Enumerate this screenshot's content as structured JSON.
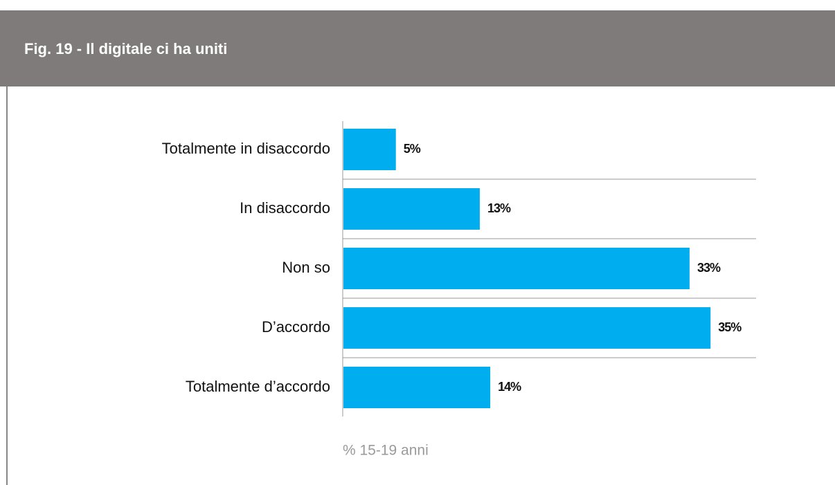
{
  "chart_data": {
    "type": "barh",
    "title": "Fig. 19 - Il digitale ci ha uniti",
    "categories": [
      "Totalmente in disaccordo",
      "In disaccordo",
      "Non so",
      "D’accordo",
      "Totalmente d’accordo"
    ],
    "values": [
      5,
      13,
      33,
      35,
      14
    ],
    "value_labels": [
      "5%",
      "13%",
      "33%",
      "35%",
      "14%"
    ],
    "color": "#00aeef",
    "xlabel": "% 15-19 anni"
  }
}
